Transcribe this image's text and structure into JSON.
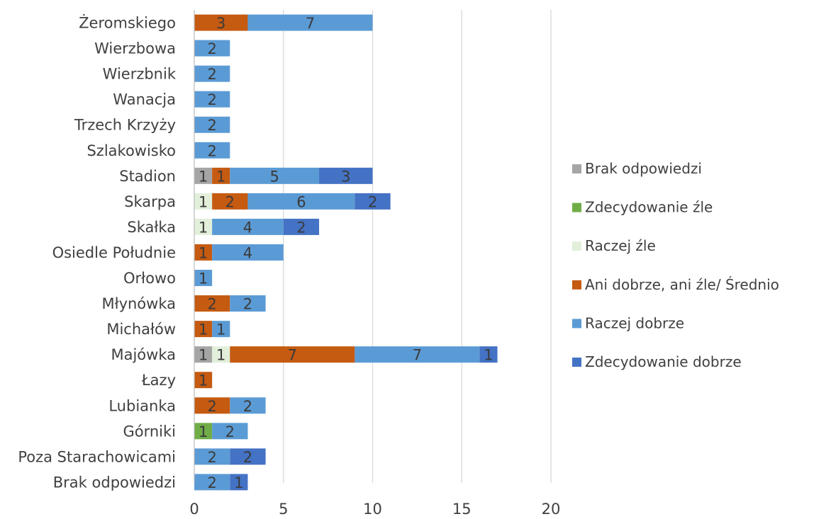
{
  "chart_data": {
    "type": "bar",
    "orientation": "horizontal",
    "stacked": true,
    "categories": [
      "Żeromskiego",
      "Wierzbowa",
      "Wierzbnik",
      "Wanacja",
      "Trzech Krzyży",
      "Szlakowisko",
      "Stadion",
      "Skarpa",
      "Skałka",
      "Osiedle Południe",
      "Orłowo",
      "Młynówka",
      "Michałów",
      "Majówka",
      "Łazy",
      "Lubianka",
      "Górniki",
      "Poza Starachowicami",
      "Brak odpowiedzi"
    ],
    "series": [
      {
        "name": "Brak odpowiedzi",
        "color": "#a5a5a5",
        "values": [
          0,
          0,
          0,
          0,
          0,
          0,
          1,
          0,
          0,
          0,
          0,
          0,
          0,
          1,
          0,
          0,
          0,
          0,
          0
        ]
      },
      {
        "name": "Zdecydowanie źle",
        "color": "#70ad47",
        "values": [
          0,
          0,
          0,
          0,
          0,
          0,
          0,
          0,
          0,
          0,
          0,
          0,
          0,
          0,
          0,
          0,
          1,
          0,
          0
        ]
      },
      {
        "name": "Raczej źle",
        "color": "#e2efda",
        "values": [
          0,
          0,
          0,
          0,
          0,
          0,
          0,
          1,
          1,
          0,
          0,
          0,
          0,
          1,
          0,
          0,
          0,
          0,
          0
        ]
      },
      {
        "name": "Ani dobrze, ani źle/ Średnio",
        "color": "#c55a11",
        "values": [
          3,
          0,
          0,
          0,
          0,
          0,
          1,
          2,
          0,
          1,
          0,
          2,
          1,
          7,
          1,
          2,
          0,
          0,
          0
        ]
      },
      {
        "name": "Raczej dobrze",
        "color": "#5b9bd5",
        "values": [
          7,
          2,
          2,
          2,
          2,
          2,
          5,
          6,
          4,
          4,
          1,
          2,
          1,
          7,
          0,
          2,
          2,
          2,
          2
        ]
      },
      {
        "name": "Zdecydowanie dobrze",
        "color": "#4472c4",
        "values": [
          0,
          0,
          0,
          0,
          0,
          0,
          3,
          2,
          2,
          0,
          0,
          0,
          0,
          1,
          0,
          0,
          0,
          2,
          1
        ]
      }
    ],
    "xlim": [
      0,
      20
    ],
    "xticks": [
      "0",
      "5",
      "10",
      "15",
      "20"
    ],
    "grid": "vertical",
    "legend": "right",
    "title": "",
    "xlabel": "",
    "ylabel": ""
  }
}
